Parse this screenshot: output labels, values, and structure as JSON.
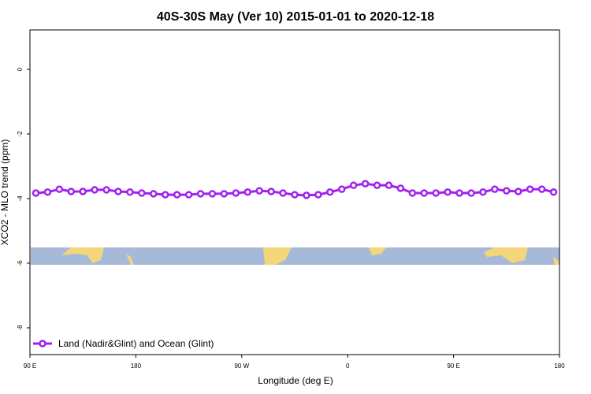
{
  "chart_data": {
    "type": "line",
    "title": "40S-30S May (Ver 10)   2015-01-01 to 2020-12-18",
    "x_label": "Longitude (deg E)",
    "y_label": "XCO2 - MLO trend (ppm)",
    "x": [
      95,
      105,
      115,
      125,
      135,
      145,
      155,
      165,
      175,
      185,
      195,
      205,
      215,
      225,
      235,
      245,
      255,
      265,
      275,
      285,
      295,
      305,
      315,
      325,
      335,
      345,
      355,
      365,
      375,
      385,
      395,
      405,
      415,
      425,
      435,
      445,
      455,
      465,
      475,
      485,
      495,
      505,
      515,
      525,
      535
    ],
    "series": [
      {
        "name": "Land (Nadir&Glint) and Ocean (Glint)",
        "color": "#a020f0",
        "values": [
          -3.83,
          -3.8,
          -3.71,
          -3.78,
          -3.78,
          -3.73,
          -3.73,
          -3.78,
          -3.8,
          -3.83,
          -3.85,
          -3.88,
          -3.88,
          -3.88,
          -3.85,
          -3.85,
          -3.85,
          -3.83,
          -3.8,
          -3.76,
          -3.78,
          -3.83,
          -3.88,
          -3.9,
          -3.88,
          -3.8,
          -3.71,
          -3.59,
          -3.54,
          -3.59,
          -3.59,
          -3.68,
          -3.83,
          -3.83,
          -3.83,
          -3.8,
          -3.83,
          -3.83,
          -3.8,
          -3.71,
          -3.76,
          -3.78,
          -3.71,
          -3.71,
          -3.8
        ]
      }
    ],
    "xlim": [
      90,
      540
    ],
    "xticks": [
      {
        "value": 90,
        "label": "90 E"
      },
      {
        "value": 180,
        "label": "180"
      },
      {
        "value": 270,
        "label": "90 W"
      },
      {
        "value": 360,
        "label": "0"
      },
      {
        "value": 450,
        "label": "90 E"
      },
      {
        "value": 540,
        "label": "180"
      }
    ],
    "ylim": [
      -8.83,
      1.22
    ],
    "yticks": [
      -8,
      -6,
      -4,
      -2,
      0
    ],
    "legend": "bottom-left"
  }
}
